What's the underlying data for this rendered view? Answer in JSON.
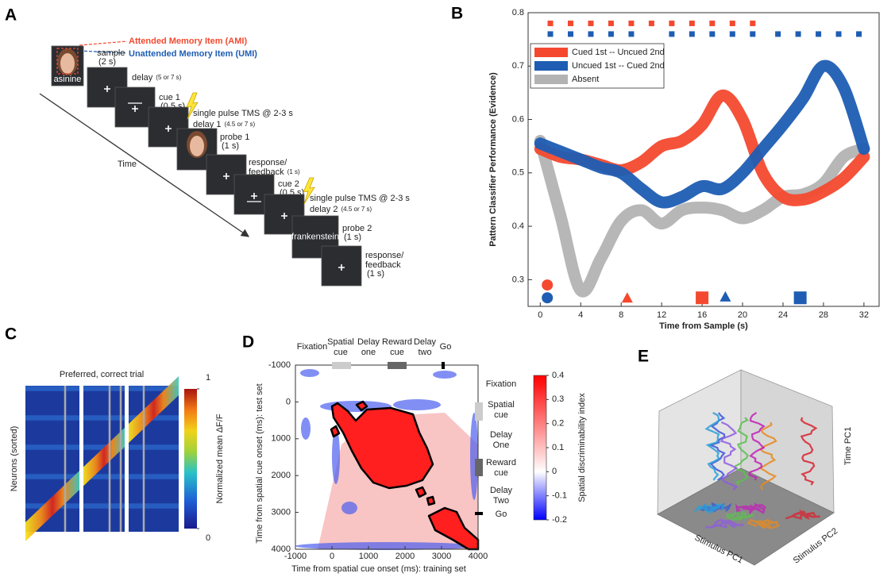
{
  "panel_a": {
    "letter": "A",
    "ami": "Attended Memory Item (AMI)",
    "umi": "Unattended Memory Item (UMI)",
    "time_label": "Time",
    "steps": [
      {
        "screen": "asinine",
        "label": [
          "sample"
        ],
        "duration": "(2 s)"
      },
      {
        "label": [
          "delay"
        ],
        "duration": "(5 or 7 s)"
      },
      {
        "label": [
          "cue 1"
        ],
        "duration": "(0.5 s)"
      },
      {
        "tms": "single pulse TMS @ 2-3 s",
        "label": [
          "delay 1"
        ],
        "duration": "(4.5 or 7 s)"
      },
      {
        "label": [
          "probe 1"
        ],
        "duration": "(1 s)"
      },
      {
        "label": [
          "response/",
          "feedback"
        ],
        "duration": "(1 s)"
      },
      {
        "label": [
          "cue 2"
        ],
        "duration": "(0.5 s)"
      },
      {
        "tms": "single pulse TMS @ 2-3 s",
        "label": [
          "delay 2"
        ],
        "duration": "(4.5 or 7 s)"
      },
      {
        "screen": "frankenstein",
        "label": [
          "probe 2"
        ],
        "duration": "(1 s)"
      },
      {
        "label": [
          "response/",
          "feedback"
        ],
        "duration": "(1 s)"
      }
    ]
  },
  "panel_b": {
    "letter": "B",
    "type": "line",
    "xlabel": "Time from Sample (s)",
    "ylabel": "Pattern Classifier Performance (Evidence)",
    "xlim": [
      -1.2,
      33.5
    ],
    "ylim": [
      0.25,
      0.8
    ],
    "xticks": [
      0,
      4,
      8,
      12,
      16,
      20,
      24,
      28,
      32
    ],
    "yticks": [
      0.3,
      0.4,
      0.5,
      0.6,
      0.7,
      0.8
    ],
    "x": [
      0,
      2,
      4,
      6,
      8,
      10,
      12,
      14,
      16,
      18,
      20,
      22,
      24,
      26,
      28,
      30,
      32
    ],
    "series": [
      {
        "name": "Cued 1st -- Uncued 2nd",
        "color": "#f4492f",
        "values": [
          0.545,
          0.53,
          0.525,
          0.515,
          0.505,
          0.52,
          0.55,
          0.56,
          0.59,
          0.645,
          0.6,
          0.5,
          0.455,
          0.45,
          0.465,
          0.49,
          0.53
        ]
      },
      {
        "name": "Uncued 1st -- Cued 2nd",
        "color": "#1e5db3",
        "values": [
          0.555,
          0.54,
          0.525,
          0.51,
          0.5,
          0.47,
          0.445,
          0.455,
          0.475,
          0.47,
          0.5,
          0.545,
          0.59,
          0.64,
          0.7,
          0.66,
          0.545
        ]
      },
      {
        "name": "Absent",
        "color": "#b3b3b3",
        "values": [
          0.56,
          0.42,
          0.28,
          0.34,
          0.41,
          0.43,
          0.405,
          0.43,
          0.435,
          0.43,
          0.415,
          0.43,
          0.455,
          0.46,
          0.48,
          0.53,
          0.545
        ]
      }
    ],
    "significance": [
      {
        "color": "#f4492f",
        "y": 0.78,
        "x": [
          1,
          3,
          5,
          7,
          9,
          11,
          13,
          15,
          17,
          19,
          21
        ]
      },
      {
        "color": "#1e5db3",
        "y": 0.76,
        "x": [
          1,
          3,
          5,
          7,
          9,
          13,
          15,
          17,
          19,
          21,
          23.5,
          25.5,
          27.5,
          29.5,
          31.5
        ]
      }
    ],
    "events": [
      {
        "shape": "circle",
        "color": "#f4492f",
        "x": 0.7,
        "y": 0.29
      },
      {
        "shape": "circle",
        "color": "#1e5db3",
        "x": 0.7,
        "y": 0.266
      },
      {
        "shape": "triangle",
        "color": "#f4492f",
        "x": 8.6,
        "y": 0.266
      },
      {
        "shape": "square",
        "color": "#f4492f",
        "x": 16,
        "y": 0.266
      },
      {
        "shape": "triangle",
        "color": "#1e5db3",
        "x": 18.3,
        "y": 0.268
      },
      {
        "shape": "square",
        "color": "#1e5db3",
        "x": 25.7,
        "y": 0.266
      }
    ]
  },
  "panel_c": {
    "letter": "C",
    "title": "Preferred, correct trial",
    "ylabel": "Neurons (sorted)",
    "colorbar_label": "Normalized mean ΔF/F",
    "colorbar_lim": [
      0,
      1
    ],
    "colorbar_ticks": [
      1,
      0
    ]
  },
  "panel_d": {
    "letter": "D",
    "xlabel": "Time from spatial cue onset (ms): training set",
    "ylabel": "Time from spatial cue onset (ms): test set",
    "xlim": [
      -1000,
      4000
    ],
    "ylim": [
      -1000,
      4000
    ],
    "xticks": [
      -1000,
      0,
      1000,
      2000,
      3000,
      4000
    ],
    "yticks": [
      -1000,
      0,
      1000,
      2000,
      3000,
      4000
    ],
    "top_epochs": [
      [
        "Fixation"
      ],
      [
        "Spatial",
        "cue"
      ],
      [
        "Delay",
        "one"
      ],
      [
        "Reward",
        "cue"
      ],
      [
        "Delay",
        "two"
      ],
      [
        "Go"
      ]
    ],
    "right_epochs": [
      [
        "Fixation"
      ],
      [
        "Spatial",
        "cue"
      ],
      [
        "Delay",
        "One"
      ],
      [
        "Reward",
        "cue"
      ],
      [
        "Delay",
        "Two"
      ],
      [
        "Go"
      ]
    ],
    "colorbar_label": "Spatial discriminability index",
    "colorbar_lim": [
      -0.2,
      0.4
    ],
    "colorbar_ticks": [
      0.4,
      0.3,
      0.2,
      0.1,
      0,
      -0.1,
      -0.2
    ]
  },
  "panel_e": {
    "letter": "E",
    "z_label": "Time PC1",
    "y_label": "Stimulus PC2",
    "x_label": "Stimulus PC1"
  }
}
